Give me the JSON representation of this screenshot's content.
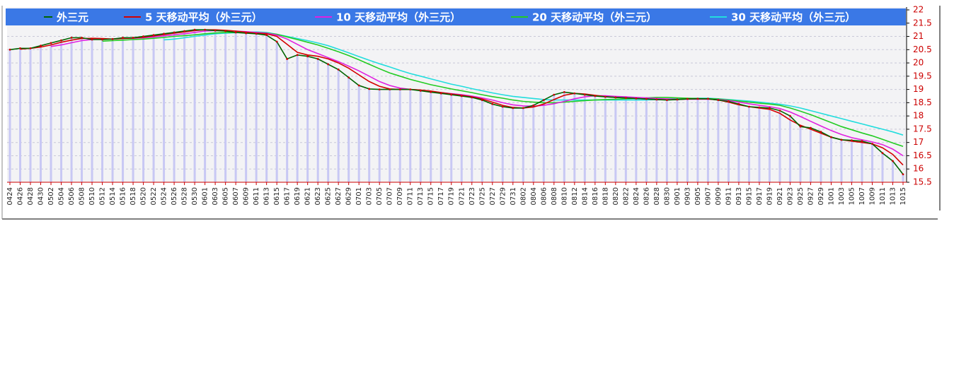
{
  "chart_data": {
    "type": "line",
    "categories": [
      "0424",
      "0426",
      "0428",
      "0430",
      "0502",
      "0504",
      "0506",
      "0508",
      "0510",
      "0512",
      "0514",
      "0516",
      "0518",
      "0520",
      "0522",
      "0524",
      "0526",
      "0528",
      "0530",
      "0601",
      "0603",
      "0605",
      "0607",
      "0609",
      "0611",
      "0613",
      "0615",
      "0617",
      "0619",
      "0621",
      "0623",
      "0625",
      "0627",
      "0629",
      "0701",
      "0703",
      "0705",
      "0707",
      "0709",
      "0711",
      "0713",
      "0715",
      "0717",
      "0719",
      "0721",
      "0723",
      "0725",
      "0727",
      "0729",
      "0731",
      "0802",
      "0804",
      "0806",
      "0808",
      "0810",
      "0812",
      "0814",
      "0816",
      "0818",
      "0820",
      "0822",
      "0824",
      "0826",
      "0828",
      "0830",
      "0901",
      "0903",
      "0905",
      "0907",
      "0909",
      "0911",
      "0913",
      "0915",
      "0917",
      "0919",
      "0921",
      "0923",
      "0925",
      "0927",
      "0929",
      "1001",
      "1003",
      "1005",
      "1007",
      "1009",
      "1011",
      "1013",
      "1015"
    ],
    "series": [
      {
        "name": "外三元",
        "color": "#006400",
        "marker_color": "#cc0000",
        "bar_color": "#c8c8f4",
        "values": [
          20.5,
          20.55,
          20.55,
          20.65,
          20.75,
          20.85,
          20.95,
          20.95,
          20.88,
          20.88,
          20.9,
          20.95,
          20.95,
          21.0,
          21.05,
          21.1,
          21.15,
          21.2,
          21.25,
          21.25,
          21.22,
          21.2,
          21.15,
          21.12,
          21.1,
          21.05,
          20.8,
          20.15,
          20.3,
          20.25,
          20.15,
          19.95,
          19.75,
          19.45,
          19.15,
          19.02,
          19.0,
          19.0,
          19.0,
          19.0,
          18.95,
          18.9,
          18.85,
          18.8,
          18.75,
          18.7,
          18.6,
          18.45,
          18.35,
          18.3,
          18.3,
          18.4,
          18.6,
          18.8,
          18.9,
          18.85,
          18.8,
          18.75,
          18.72,
          18.7,
          18.68,
          18.66,
          18.64,
          18.62,
          18.6,
          18.62,
          18.64,
          18.65,
          18.65,
          18.6,
          18.55,
          18.45,
          18.35,
          18.32,
          18.3,
          18.2,
          18.0,
          17.6,
          17.55,
          17.4,
          17.2,
          17.1,
          17.08,
          17.05,
          16.95,
          16.6,
          16.3,
          15.8
        ]
      },
      {
        "name": "5 天移动平均（外三元）",
        "color": "#d40000",
        "values": [
          null,
          20.52,
          20.55,
          20.6,
          20.68,
          20.78,
          20.86,
          20.92,
          20.93,
          20.92,
          20.9,
          20.92,
          20.94,
          20.97,
          21.02,
          21.07,
          21.12,
          21.17,
          21.22,
          21.25,
          21.25,
          21.23,
          21.2,
          21.16,
          21.12,
          21.1,
          21.0,
          20.7,
          20.4,
          20.3,
          20.25,
          20.15,
          20.0,
          19.8,
          19.55,
          19.3,
          19.12,
          19.02,
          19.0,
          19.0,
          18.98,
          18.94,
          18.88,
          18.83,
          18.78,
          18.72,
          18.64,
          18.52,
          18.4,
          18.32,
          18.3,
          18.34,
          18.45,
          18.62,
          18.78,
          18.85,
          18.83,
          18.78,
          18.73,
          18.7,
          18.68,
          18.66,
          18.64,
          18.62,
          18.61,
          18.62,
          18.64,
          18.65,
          18.64,
          18.6,
          18.52,
          18.42,
          18.35,
          18.3,
          18.25,
          18.1,
          17.85,
          17.65,
          17.5,
          17.35,
          17.2,
          17.1,
          17.05,
          17.0,
          16.95,
          16.8,
          16.55,
          16.15
        ]
      },
      {
        "name": "10 天移动平均（外三元）",
        "color": "#e020e0",
        "values": [
          null,
          null,
          null,
          null,
          20.62,
          20.68,
          20.76,
          20.84,
          20.88,
          20.9,
          20.9,
          20.92,
          20.93,
          20.95,
          20.98,
          21.02,
          21.06,
          21.1,
          21.15,
          21.2,
          21.22,
          21.22,
          21.2,
          21.18,
          21.15,
          21.12,
          21.05,
          20.9,
          20.7,
          20.5,
          20.35,
          20.2,
          20.05,
          19.88,
          19.7,
          19.5,
          19.3,
          19.15,
          19.05,
          19.0,
          18.97,
          18.93,
          18.88,
          18.84,
          18.8,
          18.75,
          18.68,
          18.6,
          18.5,
          18.42,
          18.38,
          18.37,
          18.4,
          18.46,
          18.55,
          18.65,
          18.72,
          18.76,
          18.76,
          18.74,
          18.72,
          18.7,
          18.68,
          18.66,
          18.64,
          18.63,
          18.63,
          18.63,
          18.63,
          18.62,
          18.58,
          18.52,
          18.46,
          18.4,
          18.35,
          18.28,
          18.15,
          17.98,
          17.8,
          17.62,
          17.45,
          17.3,
          17.18,
          17.1,
          17.02,
          16.92,
          16.75,
          16.5
        ]
      },
      {
        "name": "20 天移动平均（外三元）",
        "color": "#22cc22",
        "values": [
          null,
          null,
          null,
          null,
          null,
          null,
          null,
          null,
          null,
          20.82,
          20.84,
          20.86,
          20.88,
          20.9,
          20.93,
          20.96,
          21.0,
          21.03,
          21.06,
          21.1,
          21.13,
          21.15,
          21.15,
          21.15,
          21.15,
          21.13,
          21.08,
          20.98,
          20.88,
          20.78,
          20.68,
          20.55,
          20.42,
          20.28,
          20.12,
          19.95,
          19.78,
          19.62,
          19.5,
          19.38,
          19.28,
          19.18,
          19.1,
          19.02,
          18.95,
          18.88,
          18.8,
          18.73,
          18.67,
          18.6,
          18.55,
          18.52,
          18.5,
          18.5,
          18.52,
          18.55,
          18.58,
          18.6,
          18.62,
          18.63,
          18.65,
          18.66,
          18.68,
          18.7,
          18.7,
          18.68,
          18.67,
          18.66,
          18.65,
          18.64,
          18.6,
          18.56,
          18.52,
          18.48,
          18.45,
          18.4,
          18.3,
          18.18,
          18.05,
          17.9,
          17.75,
          17.6,
          17.48,
          17.36,
          17.25,
          17.12,
          16.98,
          16.85
        ]
      },
      {
        "name": "30 天移动平均（外三元）",
        "color": "#22dddd",
        "values": [
          null,
          null,
          null,
          null,
          null,
          null,
          null,
          null,
          null,
          null,
          null,
          null,
          null,
          null,
          null,
          20.87,
          20.9,
          20.95,
          21.0,
          21.05,
          21.1,
          21.12,
          21.14,
          21.16,
          21.17,
          21.15,
          21.08,
          21.0,
          20.92,
          20.84,
          20.75,
          20.65,
          20.52,
          20.38,
          20.24,
          20.1,
          19.97,
          19.85,
          19.72,
          19.6,
          19.5,
          19.4,
          19.3,
          19.2,
          19.12,
          19.03,
          18.95,
          18.87,
          18.8,
          18.74,
          18.7,
          18.66,
          18.62,
          18.6,
          18.6,
          18.6,
          18.6,
          18.6,
          18.6,
          18.6,
          18.6,
          18.6,
          18.6,
          18.62,
          18.64,
          18.65,
          18.66,
          18.67,
          18.67,
          18.65,
          18.62,
          18.59,
          18.56,
          18.52,
          18.48,
          18.44,
          18.38,
          18.3,
          18.2,
          18.1,
          18.0,
          17.9,
          17.8,
          17.7,
          17.6,
          17.5,
          17.4,
          17.28
        ]
      }
    ],
    "ylim": [
      15.5,
      22
    ],
    "yticks": [
      15.5,
      16,
      16.5,
      17,
      17.5,
      18,
      18.5,
      19,
      19.5,
      20,
      20.5,
      21,
      21.5,
      22
    ],
    "grid": true,
    "legend": "top"
  }
}
